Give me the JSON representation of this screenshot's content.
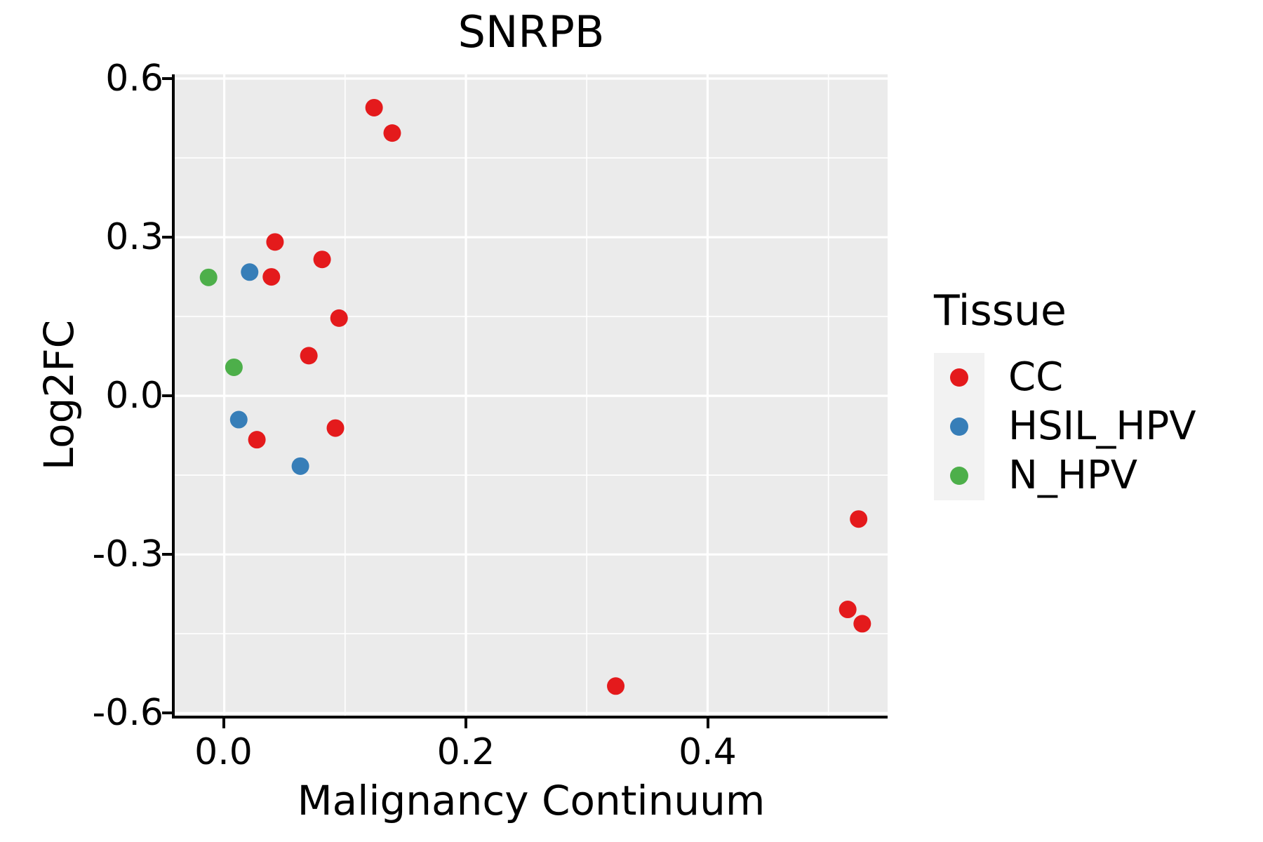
{
  "title": "SNRPB",
  "axes": {
    "x": {
      "label": "Malignancy Continuum",
      "tick_labels": [
        "0.0",
        "0.2",
        "0.4"
      ]
    },
    "y": {
      "label": "Log2FC",
      "tick_labels": [
        "0.6",
        "0.3",
        "0.0",
        "-0.3",
        "-0.6"
      ]
    }
  },
  "legend": {
    "title": "Tissue",
    "items": [
      {
        "label": "CC",
        "color": "#E41A1C"
      },
      {
        "label": "HSIL_HPV",
        "color": "#377EB8"
      },
      {
        "label": "N_HPV",
        "color": "#4DAF4A"
      }
    ]
  },
  "style": {
    "panel_background": "#EBEBEB",
    "grid_color": "#FFFFFF",
    "axis_color": "#000000",
    "legend_key_background": "#F2F2F2"
  },
  "chart_data": {
    "type": "scatter",
    "title": "SNRPB",
    "xlabel": "Malignancy Continuum",
    "ylabel": "Log2FC",
    "xlim": [
      -0.041,
      0.549
    ],
    "ylim": [
      -0.605,
      0.608
    ],
    "x_ticks": [
      0.0,
      0.2,
      0.4
    ],
    "y_ticks": [
      0.6,
      0.3,
      0.0,
      -0.3,
      -0.6
    ],
    "x_minor_ticks": [
      0.1,
      0.3,
      0.5
    ],
    "y_minor_ticks": [
      0.45,
      0.15,
      -0.15,
      -0.45
    ],
    "grid": "on",
    "legend_position": "right",
    "legend_title": "Tissue",
    "point_radius_px": 12.5,
    "series": [
      {
        "name": "CC",
        "color": "#E41A1C",
        "points": [
          [
            0.124,
            0.545
          ],
          [
            0.139,
            0.497
          ],
          [
            0.042,
            0.291
          ],
          [
            0.081,
            0.258
          ],
          [
            0.039,
            0.225
          ],
          [
            0.095,
            0.147
          ],
          [
            0.07,
            0.076
          ],
          [
            0.027,
            -0.083
          ],
          [
            0.092,
            -0.061
          ],
          [
            0.324,
            -0.549
          ],
          [
            0.525,
            -0.233
          ],
          [
            0.516,
            -0.404
          ],
          [
            0.528,
            -0.431
          ]
        ]
      },
      {
        "name": "HSIL_HPV",
        "color": "#377EB8",
        "points": [
          [
            0.021,
            0.234
          ],
          [
            0.012,
            -0.045
          ],
          [
            0.063,
            -0.133
          ]
        ]
      },
      {
        "name": "N_HPV",
        "color": "#4DAF4A",
        "points": [
          [
            -0.013,
            0.224
          ],
          [
            0.008,
            0.054
          ]
        ]
      }
    ]
  }
}
